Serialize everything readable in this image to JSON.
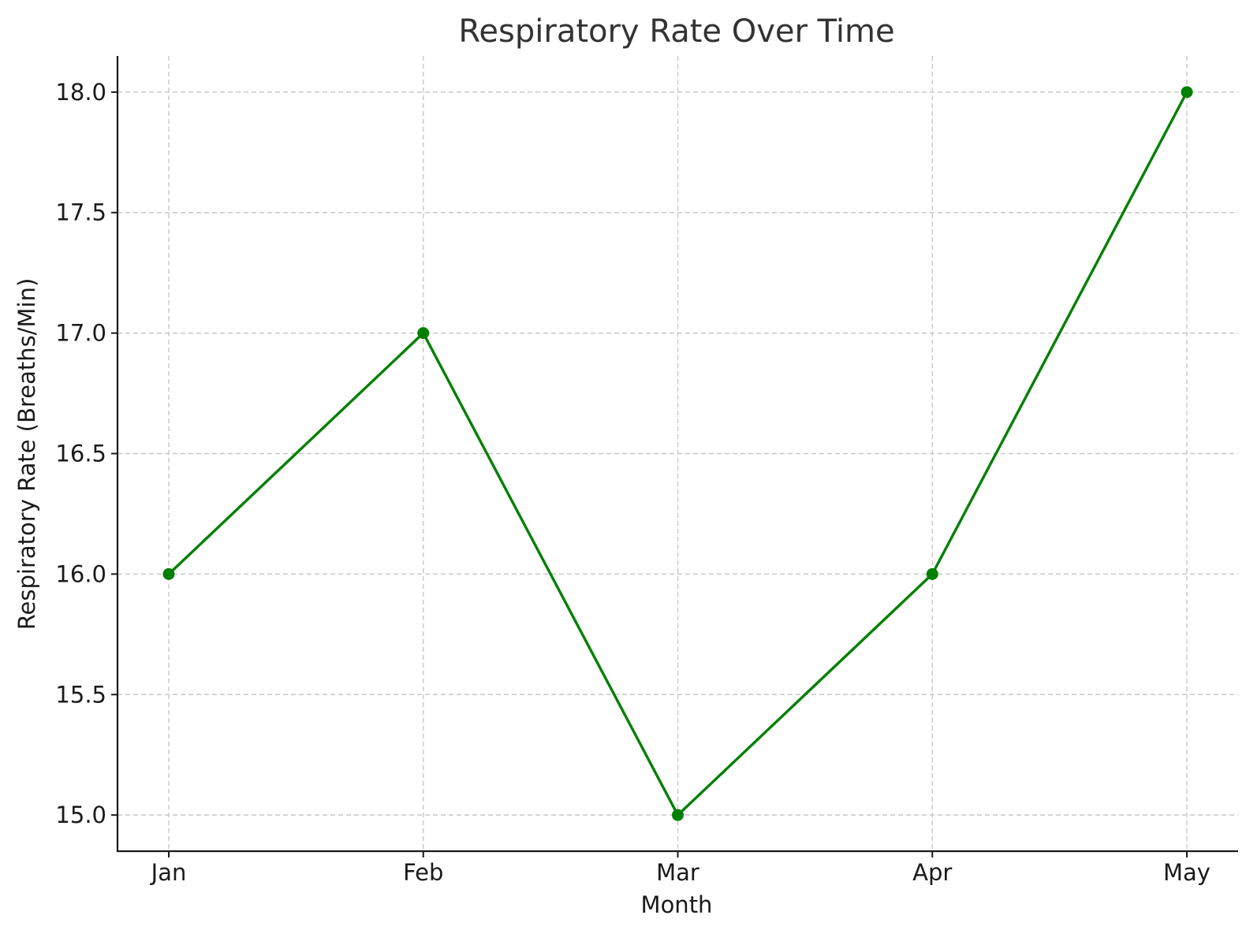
{
  "chart_data": {
    "type": "line",
    "title": "Respiratory Rate Over Time",
    "xlabel": "Month",
    "ylabel": "Respiratory Rate (Breaths/Min)",
    "categories": [
      "Jan",
      "Feb",
      "Mar",
      "Apr",
      "May"
    ],
    "series": [
      {
        "values": [
          16,
          17,
          15,
          16,
          18
        ],
        "color": "#008000",
        "marker": "circle"
      }
    ],
    "ylim": [
      14.85,
      18.15
    ],
    "yticks": [
      15.0,
      15.5,
      16.0,
      16.5,
      17.0,
      17.5,
      18.0
    ],
    "ytick_labels": [
      "15.0",
      "15.5",
      "16.0",
      "16.5",
      "17.0",
      "17.5",
      "18.0"
    ],
    "grid": true,
    "legend": "none"
  }
}
